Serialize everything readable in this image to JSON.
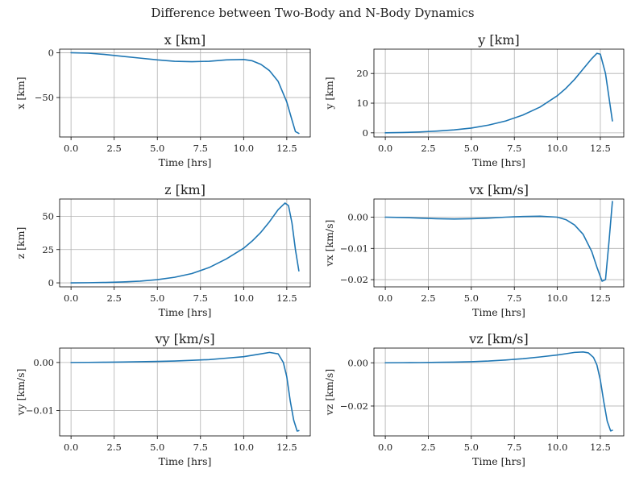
{
  "figure": {
    "suptitle": "Difference between Two-Body and N-Body Dynamics",
    "line_color": "#1f77b4",
    "grid": true
  },
  "chart_data": [
    {
      "type": "line",
      "title": "x [km]",
      "xlabel": "Time [hrs]",
      "ylabel": "x [km]",
      "xlim": [
        -0.66,
        13.86
      ],
      "ylim": [
        -94,
        4
      ],
      "xticks": [
        "0.0",
        "2.5",
        "5.0",
        "7.5",
        "10.0",
        "12.5"
      ],
      "xtick_values": [
        0,
        2.5,
        5,
        7.5,
        10,
        12.5
      ],
      "yticks": [
        "0",
        "−50"
      ],
      "ytick_values": [
        0,
        -50
      ],
      "series": [
        {
          "x": [
            0,
            1,
            2,
            3,
            4,
            5,
            6,
            7,
            8,
            9,
            10,
            10.5,
            11,
            11.5,
            12,
            12.5,
            12.8,
            13.0,
            13.2
          ],
          "y": [
            0,
            -0.5,
            -2,
            -4,
            -6,
            -8,
            -9.5,
            -10,
            -9.5,
            -8,
            -7.5,
            -9,
            -13,
            -20,
            -32,
            -55,
            -75,
            -88,
            -90
          ]
        }
      ]
    },
    {
      "type": "line",
      "title": "y [km]",
      "xlabel": "Time [hrs]",
      "ylabel": "y [km]",
      "xlim": [
        -0.66,
        13.86
      ],
      "ylim": [
        -1.4,
        28.2
      ],
      "xticks": [
        "0.0",
        "2.5",
        "5.0",
        "7.5",
        "10.0",
        "12.5"
      ],
      "xtick_values": [
        0,
        2.5,
        5,
        7.5,
        10,
        12.5
      ],
      "yticks": [
        "0",
        "10",
        "20"
      ],
      "ytick_values": [
        0,
        10,
        20
      ],
      "series": [
        {
          "x": [
            0,
            1,
            2,
            3,
            4,
            5,
            6,
            7,
            8,
            9,
            10,
            10.5,
            11,
            11.5,
            12,
            12.3,
            12.5,
            12.8,
            13.0,
            13.2
          ],
          "y": [
            0,
            0.1,
            0.3,
            0.6,
            1.0,
            1.6,
            2.6,
            4.0,
            6.0,
            8.7,
            12.5,
            15,
            18,
            21.5,
            25,
            26.8,
            26.5,
            20,
            12,
            4
          ]
        }
      ]
    },
    {
      "type": "line",
      "title": "z [km]",
      "xlabel": "Time [hrs]",
      "ylabel": "z [km]",
      "xlim": [
        -0.66,
        13.86
      ],
      "ylim": [
        -3,
        63
      ],
      "xticks": [
        "0.0",
        "2.5",
        "5.0",
        "7.5",
        "10.0",
        "12.5"
      ],
      "xtick_values": [
        0,
        2.5,
        5,
        7.5,
        10,
        12.5
      ],
      "yticks": [
        "0",
        "25",
        "50"
      ],
      "ytick_values": [
        0,
        25,
        50
      ],
      "series": [
        {
          "x": [
            0,
            1,
            2,
            3,
            4,
            5,
            6,
            7,
            8,
            9,
            10,
            10.5,
            11,
            11.5,
            12,
            12.4,
            12.6,
            12.8,
            13.0,
            13.2
          ],
          "y": [
            0,
            0.1,
            0.3,
            0.7,
            1.3,
            2.4,
            4.2,
            7.0,
            11.5,
            18,
            26,
            31.5,
            38,
            46,
            55,
            60,
            58,
            45,
            25,
            9
          ]
        }
      ]
    },
    {
      "type": "line",
      "title": "vx [km/s]",
      "xlabel": "Time [hrs]",
      "ylabel": "vx [km/s]",
      "xlim": [
        -0.66,
        13.86
      ],
      "ylim": [
        -0.0223,
        0.0058
      ],
      "xticks": [
        "0.0",
        "2.5",
        "5.0",
        "7.5",
        "10.0",
        "12.5"
      ],
      "xtick_values": [
        0,
        2.5,
        5,
        7.5,
        10,
        12.5
      ],
      "yticks": [
        "0.00",
        "−0.01",
        "−0.02"
      ],
      "ytick_values": [
        0,
        -0.01,
        -0.02
      ],
      "series": [
        {
          "x": [
            0,
            1,
            2,
            3,
            4,
            5,
            6,
            7,
            8,
            9,
            10,
            10.5,
            11,
            11.5,
            12,
            12.3,
            12.6,
            12.8,
            13.0,
            13.2
          ],
          "y": [
            0,
            -0.0001,
            -0.0003,
            -0.0005,
            -0.0006,
            -0.0005,
            -0.0003,
            0.0,
            0.0002,
            0.0003,
            0.0,
            -0.0008,
            -0.0025,
            -0.0055,
            -0.011,
            -0.016,
            -0.0205,
            -0.02,
            -0.008,
            0.005
          ]
        }
      ]
    },
    {
      "type": "line",
      "title": "vy [km/s]",
      "xlabel": "Time [hrs]",
      "ylabel": "vy [km/s]",
      "xlim": [
        -0.66,
        13.86
      ],
      "ylim": [
        -0.0153,
        0.003
      ],
      "xticks": [
        "0.0",
        "2.5",
        "5.0",
        "7.5",
        "10.0",
        "12.5"
      ],
      "xtick_values": [
        0,
        2.5,
        5,
        7.5,
        10,
        12.5
      ],
      "yticks": [
        "0.00",
        "−0.01"
      ],
      "ytick_values": [
        0,
        -0.01
      ],
      "series": [
        {
          "x": [
            0,
            1,
            2,
            3,
            4,
            5,
            6,
            7,
            8,
            9,
            10,
            10.5,
            11,
            11.5,
            12,
            12.3,
            12.5,
            12.7,
            12.9,
            13.1,
            13.2
          ],
          "y": [
            0,
            2e-05,
            5e-05,
            0.0001,
            0.00015,
            0.00022,
            0.0003,
            0.00045,
            0.0006,
            0.0009,
            0.0012,
            0.0015,
            0.0018,
            0.0021,
            0.0018,
            0.0,
            -0.003,
            -0.008,
            -0.012,
            -0.0143,
            -0.0142
          ]
        }
      ]
    },
    {
      "type": "line",
      "title": "vz [km/s]",
      "xlabel": "Time [hrs]",
      "ylabel": "vz [km/s]",
      "xlim": [
        -0.66,
        13.86
      ],
      "ylim": [
        -0.0338,
        0.0068
      ],
      "xticks": [
        "0.0",
        "2.5",
        "5.0",
        "7.5",
        "10.0",
        "12.5"
      ],
      "xtick_values": [
        0,
        2.5,
        5,
        7.5,
        10,
        12.5
      ],
      "yticks": [
        "0.00",
        "−0.02"
      ],
      "ytick_values": [
        0,
        -0.02
      ],
      "series": [
        {
          "x": [
            0,
            1,
            2,
            3,
            4,
            5,
            6,
            7,
            8,
            9,
            10,
            10.5,
            11,
            11.5,
            11.8,
            12.1,
            12.3,
            12.5,
            12.7,
            12.9,
            13.1,
            13.2
          ],
          "y": [
            0,
            5e-05,
            0.0001,
            0.0002,
            0.0003,
            0.0005,
            0.0008,
            0.0013,
            0.0019,
            0.0027,
            0.0036,
            0.0042,
            0.0048,
            0.005,
            0.0046,
            0.0025,
            -0.001,
            -0.008,
            -0.018,
            -0.027,
            -0.0315,
            -0.0312
          ]
        }
      ]
    }
  ]
}
